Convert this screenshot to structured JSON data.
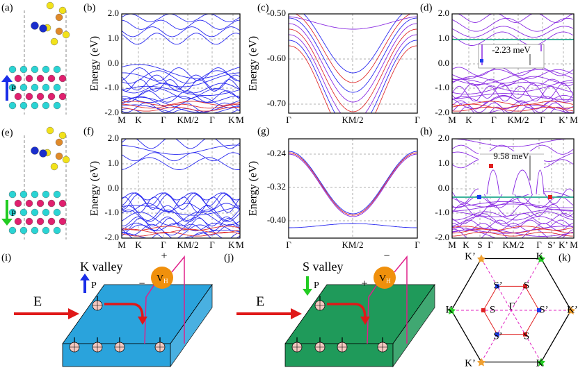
{
  "panels": [
    {
      "label": "(a)",
      "arrow_label": "P"
    },
    {
      "label": "(b)",
      "y_label": "Energy (eV)",
      "yticks": [
        "2.0",
        "1.0",
        "0.0",
        "-1.0",
        "-2.0"
      ],
      "xticks": [
        "M",
        "K",
        "Γ",
        "KM/2",
        "Γ",
        "K’",
        "M"
      ]
    },
    {
      "label": "(c)",
      "y_label": "Energy (eV)",
      "yticks": [
        "-0.50",
        "-0.60",
        "-0.70"
      ],
      "xticks": [
        "Γ",
        "KM/2",
        "Γ"
      ]
    },
    {
      "label": "(d)",
      "yticks": [
        "2.0",
        "1.0",
        "0.0",
        "-1.0",
        "-2.0"
      ],
      "xticks": [
        "M",
        "K",
        "Γ",
        "KM/2",
        "Γ",
        "K’",
        "M"
      ],
      "annotation": "-2.23 meV"
    },
    {
      "label": "(e)",
      "arrow_label": "P"
    },
    {
      "label": "(f)",
      "y_label": "Energy (eV)",
      "yticks": [
        "2.0",
        "1.0",
        "0.0",
        "-1.0",
        "-2.0"
      ],
      "xticks": [
        "M",
        "K",
        "Γ",
        "KM/2",
        "Γ",
        "K’",
        "M"
      ]
    },
    {
      "label": "(g)",
      "y_label": "Energy (eV)",
      "yticks": [
        "-0.24",
        "-0.32",
        "-0.40"
      ],
      "xticks": [
        "Γ",
        "KM/2",
        "Γ"
      ]
    },
    {
      "label": "(h)",
      "yticks": [
        "2.0",
        "1.0",
        "0.0",
        "-1.0",
        "-2.0"
      ],
      "xticks": [
        "M",
        "K",
        "S",
        "Γ",
        "KM/2",
        "Γ",
        "S’",
        "K’",
        "M"
      ],
      "annotation": "9.58 meV"
    },
    {
      "label": "(i)",
      "title": "K valley",
      "field": "E",
      "arrow_label": "P",
      "voltage": "V",
      "voltage_sub": "H",
      "plus": "+",
      "minus": "−"
    },
    {
      "label": "(j)",
      "title": "S valley",
      "field": "E",
      "arrow_label": "P",
      "voltage": "V",
      "voltage_sub": "H",
      "plus": "+",
      "minus": "−"
    },
    {
      "label": "(k)",
      "points": [
        "K’",
        "K",
        "K",
        "K’",
        "K’",
        "K",
        "S’",
        "S",
        "S",
        "S’",
        "S’",
        "S",
        "Γ"
      ]
    }
  ]
}
